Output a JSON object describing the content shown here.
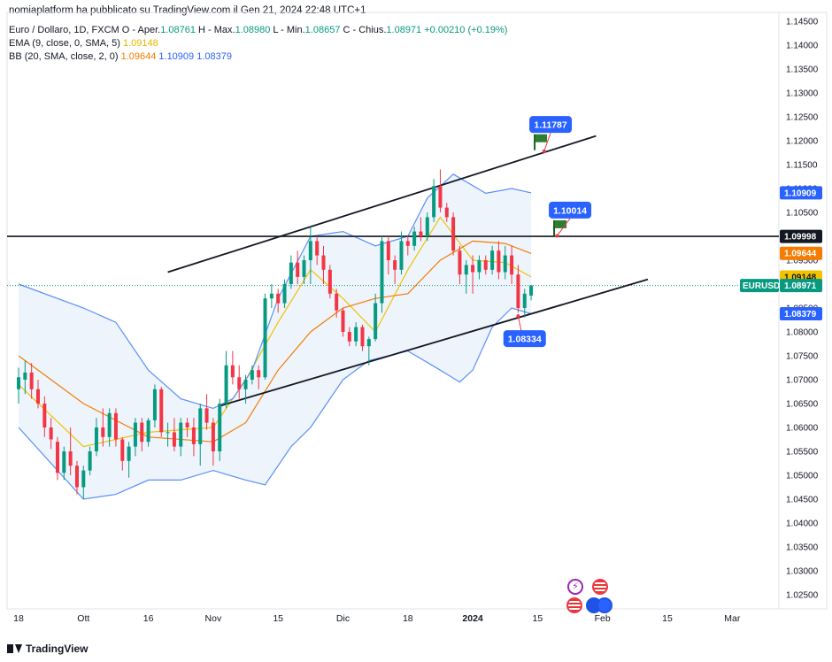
{
  "header": {
    "published": "nomiaplatform ha pubblicato su TradingView.com il Gen 21, 2024 22:48 UTC+1",
    "symbol": "Euro / Dollaro, 1D, FXCM",
    "ohlc": {
      "o_label": "O - Aper.",
      "o": "1.08761",
      "h_label": "H - Max.",
      "h": "1.08980",
      "l_label": "L - Min.",
      "l": "1.08657",
      "c_label": "C - Chius.",
      "c": "1.08971",
      "change": "+0.00210 (+0.19%)"
    },
    "ema": {
      "label": "EMA (9, close, 0, SMA, 5)",
      "value": "1.09148"
    },
    "bb": {
      "label": "BB (20, SMA, close, 2, 0)",
      "basis": "1.09644",
      "upper": "1.10909",
      "lower": "1.08379"
    }
  },
  "footer": {
    "brand": "TradingView"
  },
  "chart_data": {
    "type": "candlestick",
    "symbol": "EURUSD",
    "timeframe": "1D",
    "ylim": [
      1.02,
      1.145
    ],
    "y_ticks": [
      "1.14500",
      "1.14000",
      "1.13500",
      "1.13000",
      "1.12500",
      "1.12000",
      "1.11500",
      "1.11000",
      "1.10500",
      "1.10000",
      "1.09500",
      "1.09000",
      "1.08500",
      "1.08000",
      "1.07500",
      "1.07000",
      "1.06500",
      "1.06000",
      "1.05500",
      "1.05000",
      "1.04500",
      "1.04000",
      "1.03500",
      "1.03000",
      "1.02500"
    ],
    "x_ticks": [
      {
        "label": "18",
        "day": 0
      },
      {
        "label": "Ott",
        "day": 10
      },
      {
        "label": "16",
        "day": 20
      },
      {
        "label": "Nov",
        "day": 30
      },
      {
        "label": "15",
        "day": 40
      },
      {
        "label": "Dic",
        "day": 50
      },
      {
        "label": "18",
        "day": 60
      },
      {
        "label": "2024",
        "day": 70
      },
      {
        "label": "15",
        "day": 80
      },
      {
        "label": "Feb",
        "day": 90
      },
      {
        "label": "15",
        "day": 100
      },
      {
        "label": "Mar",
        "day": 110
      }
    ],
    "candles": [
      [
        1.068,
        1.0725,
        1.065,
        1.0705
      ],
      [
        1.07,
        1.074,
        1.067,
        1.0715
      ],
      [
        1.0715,
        1.0735,
        1.066,
        1.068
      ],
      [
        1.068,
        1.07,
        1.064,
        1.065
      ],
      [
        1.065,
        1.0665,
        1.058,
        1.06
      ],
      [
        1.06,
        1.062,
        1.0555,
        1.0575
      ],
      [
        1.057,
        1.058,
        1.049,
        1.0505
      ],
      [
        1.0505,
        1.056,
        1.049,
        1.055
      ],
      [
        1.055,
        1.06,
        1.05,
        1.052
      ],
      [
        1.052,
        1.053,
        1.046,
        1.0475
      ],
      [
        1.0475,
        1.052,
        1.045,
        1.051
      ],
      [
        1.051,
        1.056,
        1.05,
        1.055
      ],
      [
        1.055,
        1.062,
        1.054,
        1.06
      ],
      [
        1.06,
        1.064,
        1.056,
        1.058
      ],
      [
        1.058,
        1.064,
        1.056,
        1.063
      ],
      [
        1.063,
        1.064,
        1.056,
        1.0575
      ],
      [
        1.0575,
        1.058,
        1.051,
        1.053
      ],
      [
        1.053,
        1.057,
        1.0495,
        1.056
      ],
      [
        1.056,
        1.062,
        1.054,
        1.061
      ],
      [
        1.061,
        1.062,
        1.055,
        1.057
      ],
      [
        1.057,
        1.062,
        1.056,
        1.0615
      ],
      [
        1.0615,
        1.069,
        1.06,
        1.068
      ],
      [
        1.068,
        1.0685,
        1.058,
        1.059
      ],
      [
        1.059,
        1.061,
        1.056,
        1.059
      ],
      [
        1.059,
        1.062,
        1.055,
        1.056
      ],
      [
        1.056,
        1.062,
        1.054,
        1.061
      ],
      [
        1.061,
        1.062,
        1.058,
        1.06
      ],
      [
        1.06,
        1.062,
        1.054,
        1.0565
      ],
      [
        1.0565,
        1.065,
        1.052,
        1.064
      ],
      [
        1.064,
        1.067,
        1.0595,
        1.061
      ],
      [
        1.061,
        1.062,
        1.052,
        1.055
      ],
      [
        1.055,
        1.066,
        1.053,
        1.065
      ],
      [
        1.065,
        1.076,
        1.064,
        1.073
      ],
      [
        1.073,
        1.076,
        1.069,
        1.0705
      ],
      [
        1.0705,
        1.073,
        1.066,
        1.068
      ],
      [
        1.068,
        1.071,
        1.065,
        1.07
      ],
      [
        1.07,
        1.073,
        1.069,
        1.072
      ],
      [
        1.072,
        1.073,
        1.068,
        1.0705
      ],
      [
        1.0705,
        1.088,
        1.07,
        1.087
      ],
      [
        1.087,
        1.09,
        1.085,
        1.088
      ],
      [
        1.088,
        1.089,
        1.084,
        1.086
      ],
      [
        1.086,
        1.091,
        1.085,
        1.09
      ],
      [
        1.09,
        1.096,
        1.089,
        1.0945
      ],
      [
        1.0945,
        1.097,
        1.09,
        1.0915
      ],
      [
        1.0915,
        1.096,
        1.09,
        1.095
      ],
      [
        1.095,
        1.102,
        1.09,
        1.099
      ],
      [
        1.099,
        1.1,
        1.094,
        1.096
      ],
      [
        1.096,
        1.098,
        1.09,
        1.093
      ],
      [
        1.093,
        1.094,
        1.087,
        1.088
      ],
      [
        1.088,
        1.089,
        1.083,
        1.0845
      ],
      [
        1.0845,
        1.085,
        1.079,
        1.08
      ],
      [
        1.08,
        1.081,
        1.077,
        1.078
      ],
      [
        1.078,
        1.082,
        1.077,
        1.081
      ],
      [
        1.081,
        1.0815,
        1.076,
        1.077
      ],
      [
        1.077,
        1.079,
        1.073,
        1.0785
      ],
      [
        1.0785,
        1.088,
        1.078,
        1.086
      ],
      [
        1.086,
        1.1,
        1.084,
        1.099
      ],
      [
        1.099,
        1.1,
        1.092,
        1.095
      ],
      [
        1.095,
        1.096,
        1.09,
        1.093
      ],
      [
        1.093,
        1.101,
        1.092,
        1.099
      ],
      [
        1.099,
        1.1,
        1.096,
        1.098
      ],
      [
        1.098,
        1.102,
        1.097,
        1.101
      ],
      [
        1.101,
        1.104,
        1.099,
        1.1
      ],
      [
        1.1,
        1.105,
        1.099,
        1.104
      ],
      [
        1.104,
        1.112,
        1.103,
        1.1105
      ],
      [
        1.1105,
        1.114,
        1.105,
        1.106
      ],
      [
        1.106,
        1.107,
        1.103,
        1.104
      ],
      [
        1.104,
        1.105,
        1.096,
        1.097
      ],
      [
        1.097,
        1.098,
        1.09,
        1.092
      ],
      [
        1.092,
        1.095,
        1.088,
        1.094
      ],
      [
        1.094,
        1.096,
        1.088,
        1.0925
      ],
      [
        1.0925,
        1.096,
        1.091,
        1.095
      ],
      [
        1.095,
        1.096,
        1.092,
        1.093
      ],
      [
        1.093,
        1.098,
        1.092,
        1.097
      ],
      [
        1.097,
        1.099,
        1.091,
        1.0925
      ],
      [
        1.0925,
        1.098,
        1.091,
        1.096
      ],
      [
        1.096,
        1.098,
        1.09,
        1.092
      ],
      [
        1.092,
        1.094,
        1.084,
        1.085
      ],
      [
        1.085,
        1.089,
        1.083,
        1.088
      ],
      [
        1.0876,
        1.0898,
        1.0866,
        1.0897
      ]
    ],
    "series": [
      {
        "name": "EMA 9",
        "color": "#f2c200",
        "values": [
          [
            0,
            1.069
          ],
          [
            10,
            1.056
          ],
          [
            20,
            1.059
          ],
          [
            30,
            1.06
          ],
          [
            35,
            1.07
          ],
          [
            40,
            1.082
          ],
          [
            45,
            1.093
          ],
          [
            50,
            1.087
          ],
          [
            55,
            1.08
          ],
          [
            60,
            1.093
          ],
          [
            65,
            1.104
          ],
          [
            70,
            1.095
          ],
          [
            75,
            1.0945
          ],
          [
            79,
            1.0915
          ]
        ]
      },
      {
        "name": "BB basis",
        "color": "#f57c00",
        "values": [
          [
            0,
            1.075
          ],
          [
            10,
            1.065
          ],
          [
            20,
            1.058
          ],
          [
            30,
            1.057
          ],
          [
            35,
            1.061
          ],
          [
            40,
            1.072
          ],
          [
            45,
            1.08
          ],
          [
            50,
            1.085
          ],
          [
            55,
            1.087
          ],
          [
            60,
            1.088
          ],
          [
            65,
            1.095
          ],
          [
            70,
            1.099
          ],
          [
            75,
            1.0985
          ],
          [
            79,
            1.0964
          ]
        ]
      },
      {
        "name": "BB upper",
        "color": "#5b8ff9",
        "values": [
          [
            0,
            1.09
          ],
          [
            10,
            1.085
          ],
          [
            15,
            1.082
          ],
          [
            20,
            1.072
          ],
          [
            25,
            1.066
          ],
          [
            30,
            1.064
          ],
          [
            33,
            1.066
          ],
          [
            36,
            1.072
          ],
          [
            40,
            1.087
          ],
          [
            45,
            1.1
          ],
          [
            50,
            1.101
          ],
          [
            55,
            1.098
          ],
          [
            60,
            1.1
          ],
          [
            63,
            1.108
          ],
          [
            67,
            1.113
          ],
          [
            72,
            1.109
          ],
          [
            76,
            1.11
          ],
          [
            79,
            1.1091
          ]
        ]
      },
      {
        "name": "BB lower",
        "color": "#5b8ff9",
        "values": [
          [
            0,
            1.06
          ],
          [
            10,
            1.045
          ],
          [
            15,
            1.046
          ],
          [
            20,
            1.049
          ],
          [
            25,
            1.049
          ],
          [
            30,
            1.051
          ],
          [
            35,
            1.049
          ],
          [
            38,
            1.048
          ],
          [
            42,
            1.056
          ],
          [
            45,
            1.06
          ],
          [
            50,
            1.07
          ],
          [
            54,
            1.074
          ],
          [
            60,
            1.076
          ],
          [
            65,
            1.072
          ],
          [
            68,
            1.0695
          ],
          [
            70,
            1.072
          ],
          [
            73,
            1.081
          ],
          [
            76,
            1.085
          ],
          [
            79,
            1.0838
          ]
        ]
      }
    ],
    "trendlines": [
      {
        "from": [
          23,
          1.0925
        ],
        "to": [
          89,
          1.121
        ]
      },
      {
        "from": [
          31,
          1.0645
        ],
        "to": [
          97,
          1.091
        ]
      }
    ],
    "horizontal_line": 1.09998,
    "annotations": [
      {
        "text": "1.11787",
        "day": 82,
        "price": 1.1233,
        "target": [
          81,
          1.1178
        ]
      },
      {
        "text": "1.10014",
        "day": 85,
        "price": 1.1054,
        "target": [
          83,
          1.1001
        ]
      },
      {
        "text": "1.08334",
        "day": 78,
        "price": 1.0785,
        "target": [
          77,
          1.0833
        ]
      }
    ],
    "price_labels": [
      {
        "text": "1.10909",
        "price": 1.10909,
        "color": "#2962ff"
      },
      {
        "text": "1.09998",
        "price": 1.09998,
        "color": "#131722"
      },
      {
        "text": "1.09644",
        "price": 1.09644,
        "color": "#f57c00"
      },
      {
        "text": "1.09148",
        "price": 1.09148,
        "color": "#f2c200",
        "text_color": "#131722"
      },
      {
        "text": "1.08971",
        "price": 1.08971,
        "color": "#089981",
        "tag": "EURUSD"
      },
      {
        "text": "1.08379",
        "price": 1.08379,
        "color": "#2962ff"
      }
    ],
    "colors": {
      "up": "#089981",
      "down": "#f23645",
      "band_fill": "#eef4fc"
    }
  }
}
